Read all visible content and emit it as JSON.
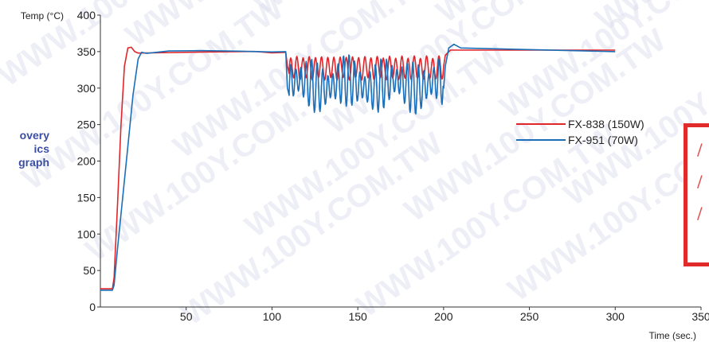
{
  "watermark": "WWW.100Y.COM.TW",
  "side_label": [
    "overy",
    "ics",
    "graph"
  ],
  "red_box_glyphs": [
    "/",
    "/",
    "/"
  ],
  "chart_data": {
    "type": "line",
    "ylabel": "Temp (°C)",
    "xlabel": "Time (sec.)",
    "xlim": [
      0,
      350
    ],
    "ylim": [
      0,
      400
    ],
    "x_ticks": [
      50,
      100,
      150,
      200,
      250,
      300,
      350
    ],
    "y_ticks": [
      0,
      50,
      100,
      150,
      200,
      250,
      300,
      350,
      400
    ],
    "legend_position": "right",
    "series": [
      {
        "name": "FX-838 (150W)",
        "color": "#e0262b",
        "points": [
          [
            0,
            25
          ],
          [
            7,
            25
          ],
          [
            8,
            40
          ],
          [
            10,
            140
          ],
          [
            12,
            250
          ],
          [
            14,
            330
          ],
          [
            16,
            355
          ],
          [
            18,
            356
          ],
          [
            20,
            350
          ],
          [
            22,
            348
          ],
          [
            30,
            349
          ],
          [
            60,
            350
          ],
          [
            90,
            350
          ],
          [
            100,
            349
          ],
          [
            108,
            349
          ],
          [
            109,
            330
          ],
          [
            110,
            320
          ],
          [
            200,
            330
          ],
          [
            201,
            345
          ],
          [
            204,
            352
          ],
          [
            210,
            352
          ],
          [
            300,
            352
          ]
        ],
        "oscillation": {
          "from": 110,
          "to": 200,
          "low": 310,
          "high": 345,
          "period": 3.6
        }
      },
      {
        "name": "FX-951 (70W)",
        "color": "#1a6fb8",
        "points": [
          [
            0,
            23
          ],
          [
            7,
            23
          ],
          [
            8,
            30
          ],
          [
            10,
            80
          ],
          [
            13,
            150
          ],
          [
            16,
            220
          ],
          [
            19,
            290
          ],
          [
            22,
            340
          ],
          [
            24,
            349
          ],
          [
            27,
            348
          ],
          [
            40,
            350
          ],
          [
            60,
            352
          ],
          [
            80,
            350
          ],
          [
            100,
            350
          ],
          [
            108,
            350
          ],
          [
            109,
            300
          ],
          [
            110,
            290
          ],
          [
            200,
            300
          ],
          [
            201,
            330
          ],
          [
            203,
            355
          ],
          [
            206,
            360
          ],
          [
            210,
            355
          ],
          [
            300,
            350
          ]
        ],
        "oscillation": {
          "from": 110,
          "to": 200,
          "low": 275,
          "high": 335,
          "period": 3.1
        }
      }
    ]
  }
}
